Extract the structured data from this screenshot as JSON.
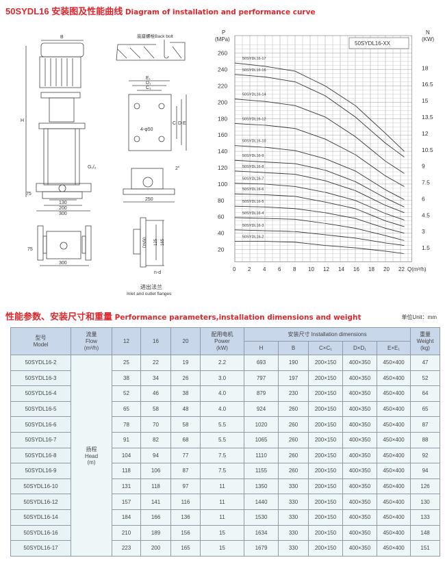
{
  "title_cn": "50SYDL16 安装图及性能曲线",
  "title_en": "Diagram of installation and performance curve",
  "diagram": {
    "pump_labels": {
      "B": "B",
      "H": "H",
      "G": "G₁/₂",
      "d75": "75",
      "d130": "130",
      "d200": "200",
      "d300": "300",
      "d75b": "75",
      "d300b": "300"
    },
    "bolt_label": "底座螺栓Back bolt",
    "base_labels": {
      "E1": "E₁",
      "D1": "D₁",
      "C1": "C₁",
      "holes": "4-φ50",
      "E": "E",
      "D": "D",
      "C": "C"
    },
    "side_labels": {
      "inch": "2\"",
      "w250": "250"
    },
    "flange_labels": {
      "dn": "DN50",
      "d125": "125",
      "d165": "165",
      "nd": "n-d",
      "cn": "进出法兰",
      "en": "Inlet and outlet flanges"
    }
  },
  "chart_data": {
    "type": "line",
    "legend_box": "50SYDL16-XX",
    "ylabel_left": "P",
    "ylabel_left_unit": "(MPa)",
    "ylabel_right": "N",
    "ylabel_right_unit": "(KW)",
    "xlabel": "Q(m³/h)",
    "xlim": [
      0,
      22
    ],
    "ylim": [
      20,
      260
    ],
    "grid": true,
    "x_ticks": [
      0,
      2,
      4,
      6,
      8,
      10,
      12,
      14,
      16,
      18,
      20,
      22
    ],
    "y_ticks": [
      20,
      40,
      60,
      80,
      100,
      120,
      140,
      160,
      180,
      200,
      220,
      240,
      260
    ],
    "y2_ticks": [
      1.5,
      3,
      4.5,
      6,
      7.5,
      9,
      10.5,
      12,
      13.5,
      15,
      16.5,
      18
    ],
    "x": [
      0,
      4,
      8,
      12,
      16,
      20,
      22.5
    ],
    "series": [
      {
        "name": "50SYDL16-17",
        "values": [
          248,
          244,
          238,
          220,
          196,
          162,
          140
        ]
      },
      {
        "name": "50SYDL16-16",
        "values": [
          234,
          231,
          225,
          208,
          182,
          150,
          133
        ]
      },
      {
        "name": "50SYDL16-14",
        "values": [
          204,
          201,
          196,
          182,
          158,
          128,
          113
        ]
      },
      {
        "name": "50SYDL16-12",
        "values": [
          174,
          172,
          168,
          155,
          136,
          110,
          97
        ]
      },
      {
        "name": "50SYDL16-10",
        "values": [
          147,
          145,
          141,
          131,
          116,
          93,
          81
        ]
      },
      {
        "name": "50SYDL16-9",
        "values": [
          129,
          127,
          125,
          117,
          103,
          83,
          72
        ]
      },
      {
        "name": "50SYDL16-8",
        "values": [
          116,
          114,
          112,
          104,
          92,
          74,
          65
        ]
      },
      {
        "name": "50SYDL16-7",
        "values": [
          101,
          100,
          97,
          90,
          80,
          64,
          56
        ]
      },
      {
        "name": "50SYDL16-6",
        "values": [
          88,
          87,
          85,
          78,
          70,
          55,
          48
        ]
      },
      {
        "name": "50SYDL16-5",
        "values": [
          73,
          72,
          70,
          65,
          58,
          46,
          40
        ]
      },
      {
        "name": "50SYDL16-4",
        "values": [
          59,
          58,
          57,
          52,
          46,
          37,
          31
        ]
      },
      {
        "name": "50SYDL16-3",
        "values": [
          44,
          43,
          42,
          38,
          34,
          28,
          25
        ]
      },
      {
        "name": "50SYDL16-2",
        "values": [
          30,
          30,
          29,
          25,
          22,
          18,
          15
        ]
      }
    ]
  },
  "table_title_cn": "性能参数、安装尺寸和重量",
  "table_title_en": "Performance parameters,installation dimensions and weight",
  "unit": "单位Unit：mm",
  "table": {
    "h_model_cn": "型号",
    "h_model_en": "Model",
    "h_flow_cn": "流量",
    "h_flow_en": "Flow",
    "h_flow_unit": "(m³/h)",
    "flows": [
      "12",
      "16",
      "20"
    ],
    "h_power_cn": "配用电机",
    "h_power_en": "Power",
    "h_power_unit": "(kW)",
    "h_inst": "安装尺寸 Installation dimensions",
    "dims": [
      "H",
      "B",
      "C×C₁",
      "D×D₁",
      "E×E₁"
    ],
    "h_weight_cn": "重量",
    "h_weight_en": "Weight",
    "h_weight_unit": "(kg)",
    "head_cn": "扬程",
    "head_en": "Head",
    "head_unit": "(m)",
    "rows": [
      [
        "50SYDL16-2",
        "25",
        "22",
        "19",
        "2.2",
        "693",
        "190",
        "200×150",
        "400×350",
        "450×400",
        "47"
      ],
      [
        "50SYDL16-3",
        "38",
        "34",
        "26",
        "3.0",
        "797",
        "197",
        "200×150",
        "400×350",
        "450×400",
        "52"
      ],
      [
        "50SYDL16-4",
        "52",
        "46",
        "38",
        "4.0",
        "879",
        "230",
        "200×150",
        "400×350",
        "450×400",
        "64"
      ],
      [
        "50SYDL16-5",
        "65",
        "58",
        "48",
        "4.0",
        "924",
        "260",
        "200×150",
        "400×350",
        "450×400",
        "65"
      ],
      [
        "50SYDL16-6",
        "78",
        "70",
        "58",
        "5.5",
        "1020",
        "260",
        "200×150",
        "400×350",
        "450×400",
        "87"
      ],
      [
        "50SYDL16-7",
        "91",
        "82",
        "68",
        "5.5",
        "1065",
        "260",
        "200×150",
        "400×350",
        "450×400",
        "88"
      ],
      [
        "50SYDL16-8",
        "104",
        "94",
        "77",
        "7.5",
        "1110",
        "260",
        "200×150",
        "400×350",
        "450×400",
        "92"
      ],
      [
        "50SYDL16-9",
        "118",
        "106",
        "87",
        "7.5",
        "1155",
        "260",
        "200×150",
        "400×350",
        "450×400",
        "94"
      ],
      [
        "50SYDL16-10",
        "131",
        "118",
        "97",
        "11",
        "1350",
        "330",
        "200×150",
        "400×350",
        "450×400",
        "126"
      ],
      [
        "50SYDL16-12",
        "157",
        "141",
        "116",
        "11",
        "1440",
        "330",
        "200×150",
        "400×350",
        "450×400",
        "130"
      ],
      [
        "50SYDL16-14",
        "184",
        "166",
        "136",
        "11",
        "1530",
        "330",
        "200×150",
        "400×350",
        "450×400",
        "133"
      ],
      [
        "50SYDL16-16",
        "210",
        "189",
        "156",
        "15",
        "1634",
        "330",
        "200×150",
        "400×350",
        "450×400",
        "148"
      ],
      [
        "50SYDL16-17",
        "223",
        "200",
        "165",
        "15",
        "1679",
        "330",
        "200×150",
        "400×350",
        "450×400",
        "151"
      ]
    ]
  }
}
